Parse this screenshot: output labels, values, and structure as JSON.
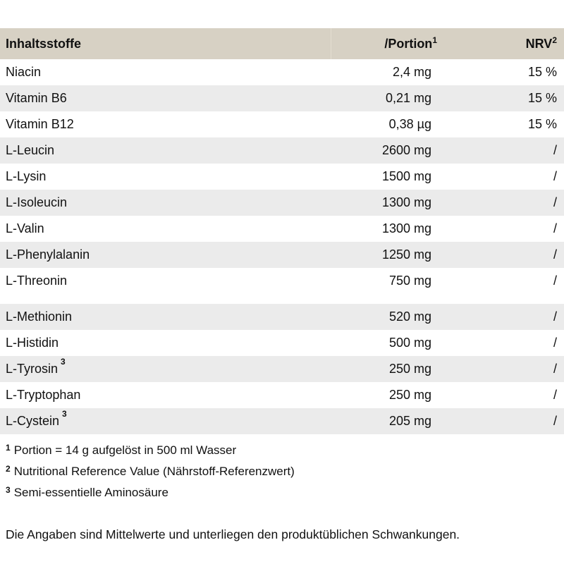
{
  "table": {
    "colors": {
      "header_bg": "#d7d1c4",
      "header_divider": "#e3ddd1",
      "alt_row_bg": "#ebebeb",
      "text": "#111111"
    },
    "header": {
      "col1": "Inhaltsstoffe",
      "col2": "/Portion",
      "col2_sup": "1",
      "col3": "NRV",
      "col3_sup": "2"
    },
    "rows": [
      {
        "label": "Niacin",
        "amount": "2,4 mg",
        "nrv": "15 %"
      },
      {
        "label": "Vitamin B6",
        "amount": "0,21 mg",
        "nrv": "15 %"
      },
      {
        "label": "Vitamin B12",
        "amount": "0,38 µg",
        "nrv": "15 %"
      },
      {
        "label": "L-Leucin",
        "amount": "2600 mg",
        "nrv": "/"
      },
      {
        "label": "L-Lysin",
        "amount": "1500 mg",
        "nrv": "/"
      },
      {
        "label": "L-Isoleucin",
        "amount": "1300 mg",
        "nrv": "/"
      },
      {
        "label": "L-Valin",
        "amount": "1300 mg",
        "nrv": "/"
      },
      {
        "label": "L-Phenylalanin",
        "amount": "1250 mg",
        "nrv": "/"
      },
      {
        "label": "L-Threonin",
        "amount": "750 mg",
        "nrv": "/"
      },
      {
        "label": "L-Methionin",
        "amount": "520 mg",
        "nrv": "/",
        "section_break": true
      },
      {
        "label": "L-Histidin",
        "amount": "500 mg",
        "nrv": "/"
      },
      {
        "label": "L-Tyrosin",
        "label_sup": "3",
        "amount": "250 mg",
        "nrv": "/"
      },
      {
        "label": "L-Tryptophan",
        "amount": "250 mg",
        "nrv": "/"
      },
      {
        "label": "L-Cystein",
        "label_sup": "3",
        "amount": "205 mg",
        "nrv": "/"
      }
    ]
  },
  "footnotes": [
    {
      "sup": "1",
      "text": "Portion = 14 g aufgelöst in 500 ml Wasser"
    },
    {
      "sup": "2",
      "text": "Nutritional Reference Value (Nährstoff-Referenzwert)"
    },
    {
      "sup": "3",
      "text": "Semi-essentielle Aminosäure"
    }
  ],
  "disclaimer": "Die Angaben sind Mittelwerte und unterliegen den produktüblichen Schwankungen."
}
